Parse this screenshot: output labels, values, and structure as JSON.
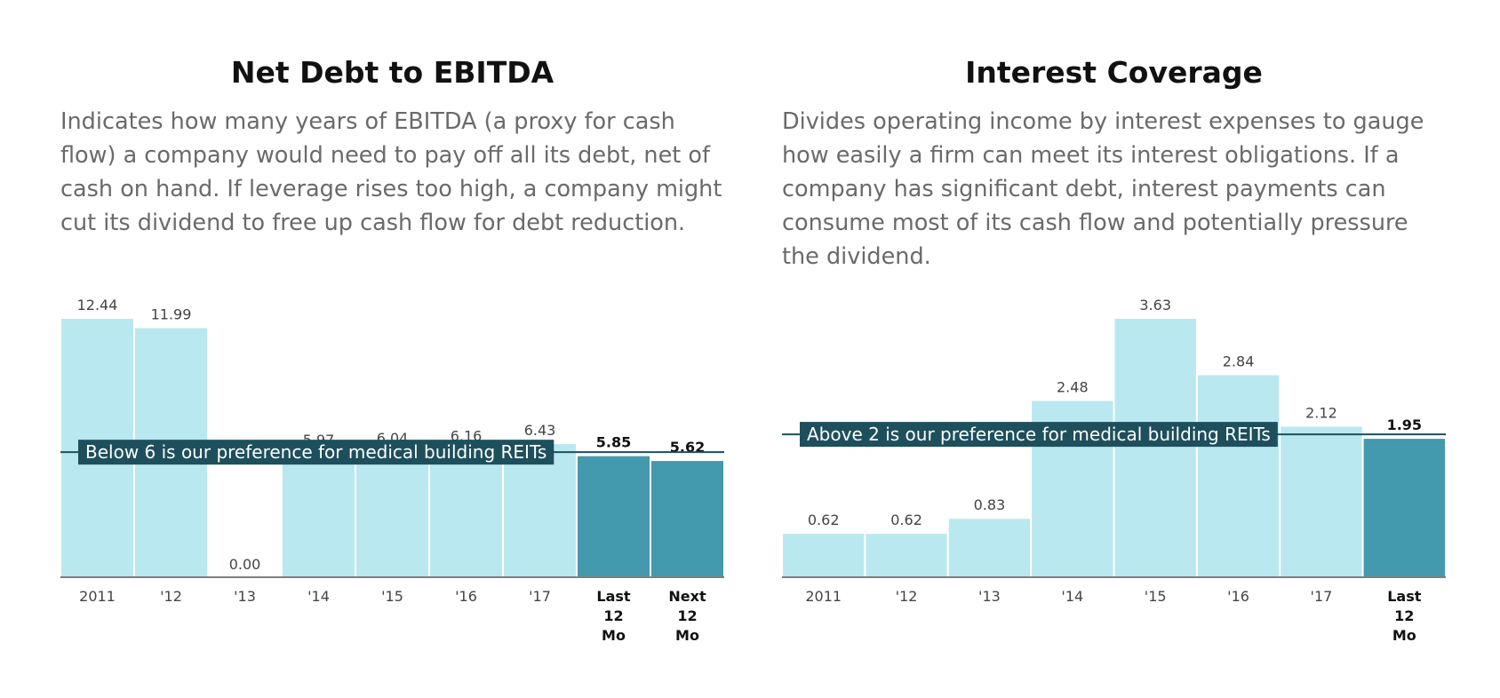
{
  "colors": {
    "bar_light": "#b9e8f0",
    "bar_dark": "#4399ad",
    "reference": "#1e4f5c",
    "axis": "#555555"
  },
  "chart_data": [
    {
      "type": "bar",
      "title": "Net Debt to EBITDA",
      "description": "Indicates how many years of EBITDA (a proxy for cash flow) a company would need to pay off all its debt, net of cash on hand. If leverage rises too high, a company might cut its dividend to free up cash flow for debt reduction.",
      "categories": [
        [
          "2011"
        ],
        [
          "'12"
        ],
        [
          "'13"
        ],
        [
          "'14"
        ],
        [
          "'15"
        ],
        [
          "'16"
        ],
        [
          "'17"
        ],
        [
          "Last",
          "12",
          "Mo"
        ],
        [
          "Next",
          "12",
          "Mo"
        ]
      ],
      "values": [
        12.44,
        11.99,
        0.0,
        5.97,
        6.04,
        6.16,
        6.43,
        5.85,
        5.62
      ],
      "value_labels": [
        "12.44",
        "11.99",
        "0.00",
        "5.97",
        "6.04",
        "6.16",
        "6.43",
        "5.85",
        "5.62"
      ],
      "highlighted": [
        false,
        false,
        false,
        false,
        false,
        false,
        false,
        true,
        true
      ],
      "ylim": [
        0,
        12.44
      ],
      "reference_line": {
        "value": 6,
        "label": "Below 6 is our preference for medical building REITs"
      },
      "grid": false,
      "legend": "none"
    },
    {
      "type": "bar",
      "title": "Interest Coverage",
      "description": "Divides operating income by interest expenses to gauge how easily a firm can meet its interest obligations. If a company has significant debt, interest payments can consume most of its cash flow and potentially pressure the dividend.",
      "categories": [
        [
          "2011"
        ],
        [
          "'12"
        ],
        [
          "'13"
        ],
        [
          "'14"
        ],
        [
          "'15"
        ],
        [
          "'16"
        ],
        [
          "'17"
        ],
        [
          "Last",
          "12",
          "Mo"
        ]
      ],
      "values": [
        0.62,
        0.62,
        0.83,
        2.48,
        3.63,
        2.84,
        2.12,
        1.95
      ],
      "value_labels": [
        "0.62",
        "0.62",
        "0.83",
        "2.48",
        "3.63",
        "2.84",
        "2.12",
        "1.95"
      ],
      "highlighted": [
        false,
        false,
        false,
        false,
        false,
        false,
        false,
        true
      ],
      "ylim": [
        0,
        3.63
      ],
      "reference_line": {
        "value": 2,
        "label": "Above 2 is our preference for medical building REITs"
      },
      "grid": false,
      "legend": "none"
    }
  ]
}
